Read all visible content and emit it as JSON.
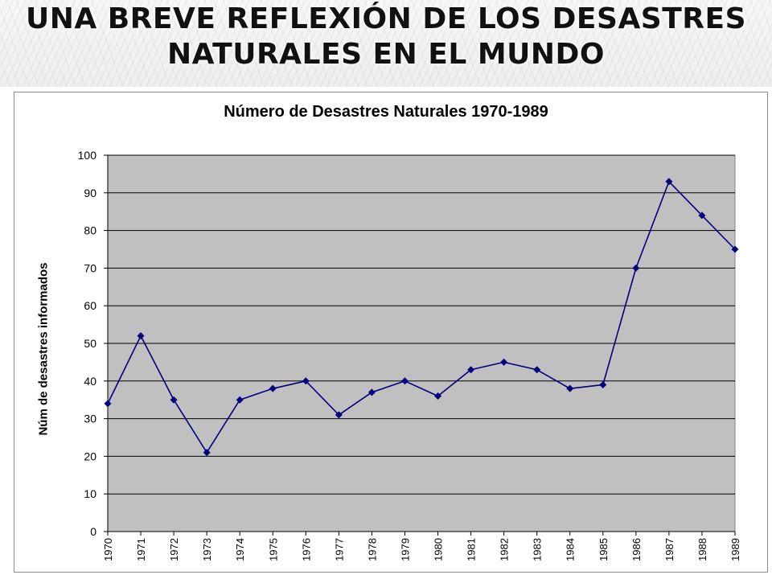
{
  "slide": {
    "title_line1": "UNA BREVE REFLEXIÓN DE LOS DESASTRES",
    "title_line2": "NATURALES EN EL MUNDO"
  },
  "chart_data": {
    "type": "line",
    "title": "Número de Desastres Naturales 1970-1989",
    "xlabel": "",
    "ylabel": "Núm de desastres informados",
    "categories": [
      "1970",
      "1971",
      "1972",
      "1973",
      "1974",
      "1975",
      "1976",
      "1977",
      "1978",
      "1979",
      "1980",
      "1981",
      "1982",
      "1983",
      "1984",
      "1985",
      "1986",
      "1987",
      "1988",
      "1989"
    ],
    "series": [
      {
        "values": [
          34,
          52,
          35,
          21,
          35,
          38,
          40,
          31,
          37,
          40,
          36,
          43,
          45,
          43,
          38,
          39,
          70,
          93,
          84,
          75
        ]
      }
    ],
    "ylim": [
      0,
      100
    ],
    "yticks": [
      0,
      10,
      20,
      30,
      40,
      50,
      60,
      70,
      80,
      90,
      100
    ],
    "grid": true,
    "legend": "none",
    "colors": {
      "series_line": "#00007f",
      "plot_area": "#c0c0c0",
      "gridline": "#000000"
    }
  }
}
